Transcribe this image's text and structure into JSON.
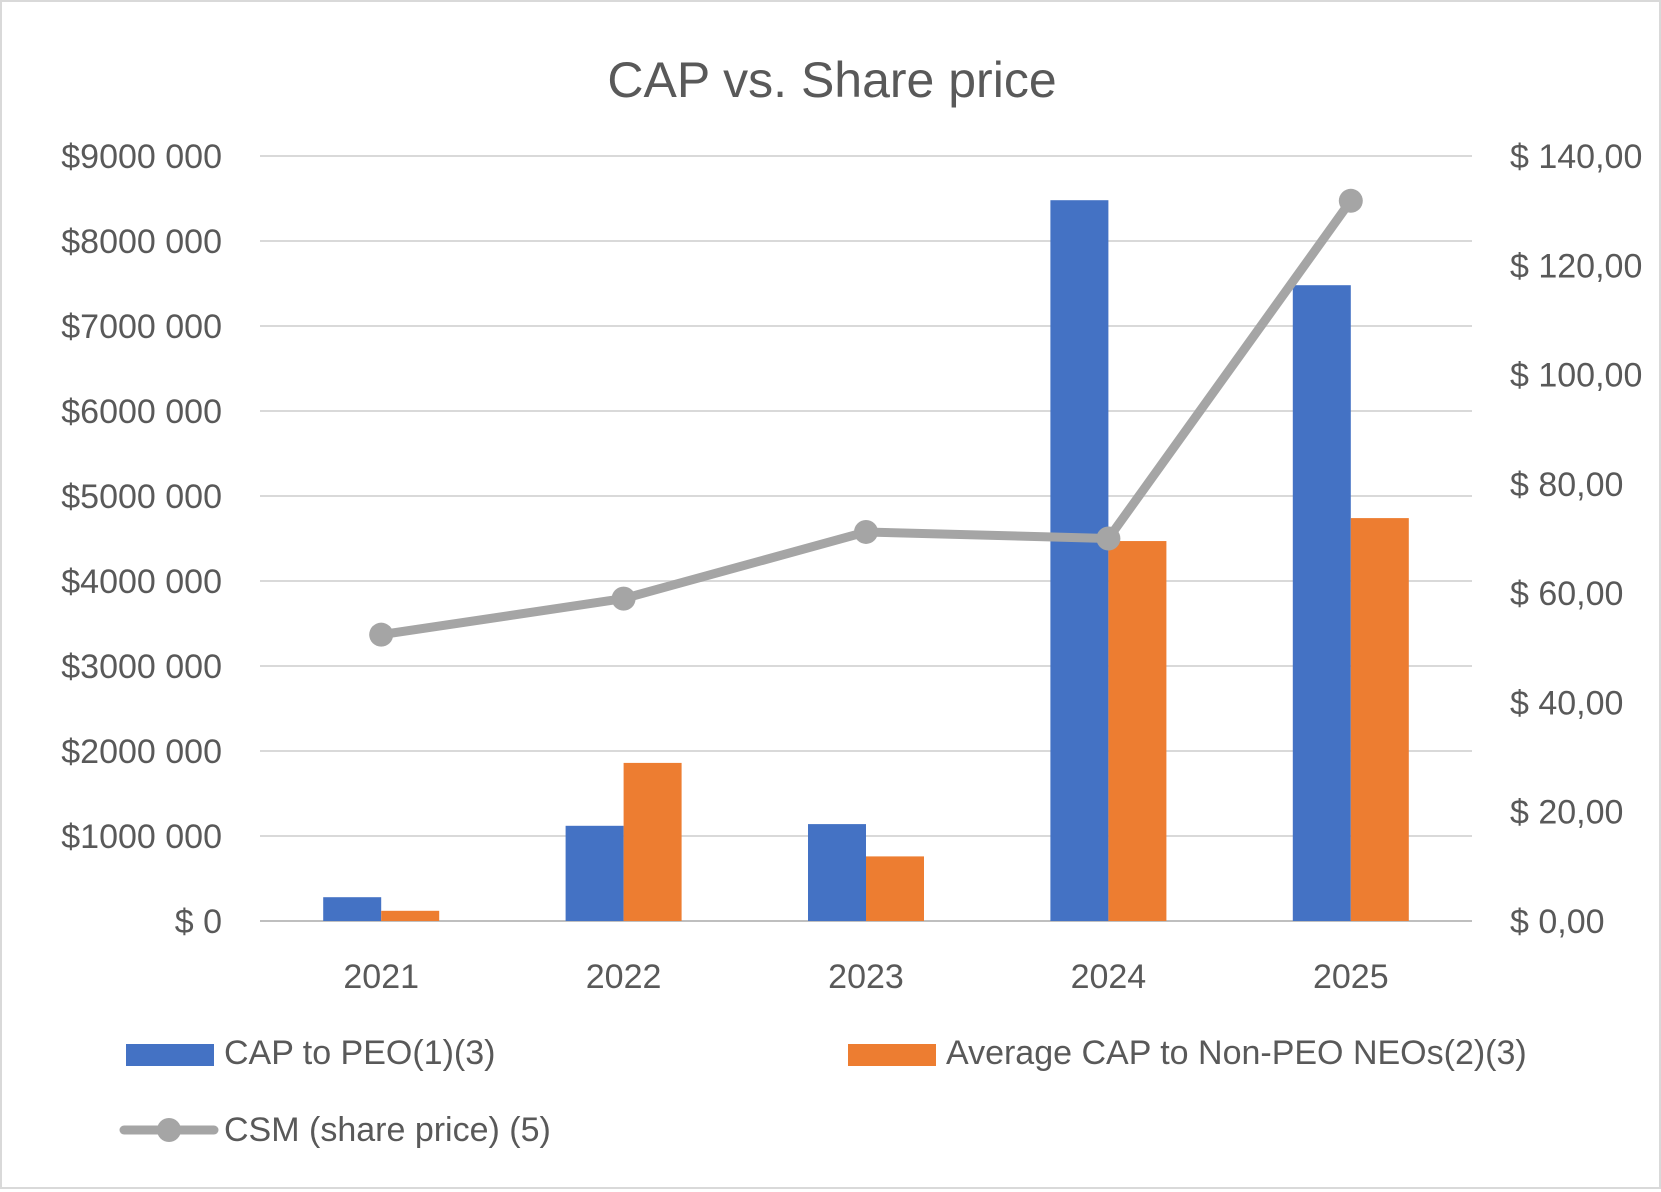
{
  "chart_data": {
    "type": "bar",
    "title": "CAP vs. Share price",
    "categories": [
      "2021",
      "2022",
      "2023",
      "2024",
      "2025"
    ],
    "series": [
      {
        "name": "CAP to PEO(1)(3)",
        "kind": "bar",
        "axis": "left",
        "color": "#4472C4",
        "values": [
          280000,
          1120000,
          1140000,
          8480000,
          7480000
        ]
      },
      {
        "name": "Average CAP to Non-PEO NEOs(2)(3)",
        "kind": "bar",
        "axis": "left",
        "color": "#ED7D31",
        "values": [
          120000,
          1860000,
          760000,
          4470000,
          4740000
        ]
      },
      {
        "name": "CSM (share price) (5)",
        "kind": "line",
        "axis": "right",
        "color": "#A5A5A5",
        "values": [
          52.4,
          59.0,
          71.2,
          70.0,
          131.8
        ]
      }
    ],
    "y_left": {
      "ylim": [
        0,
        9000000
      ],
      "ticks": [
        0,
        1000000,
        2000000,
        3000000,
        4000000,
        5000000,
        6000000,
        7000000,
        8000000,
        9000000
      ],
      "tick_labels": [
        "$ 0",
        "$1000 000",
        "$2000 000",
        "$3000 000",
        "$4000 000",
        "$5000 000",
        "$6000 000",
        "$7000 000",
        "$8000 000",
        "$9000 000"
      ]
    },
    "y_right": {
      "ylim": [
        0,
        140
      ],
      "ticks": [
        0,
        20,
        40,
        60,
        80,
        100,
        120,
        140
      ],
      "tick_labels": [
        "$ 0,00",
        "$ 20,00",
        "$ 40,00",
        "$ 60,00",
        "$ 80,00",
        "$ 100,00",
        "$ 120,00",
        "$ 140,00"
      ]
    },
    "grid": true,
    "legend": "bottom"
  }
}
